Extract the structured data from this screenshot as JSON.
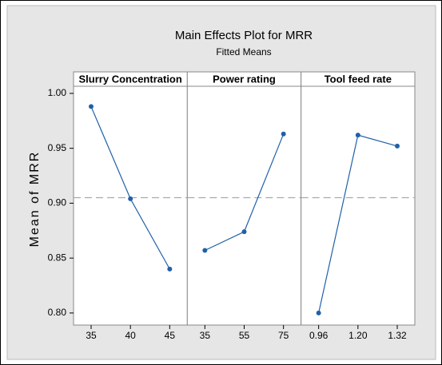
{
  "figure": {
    "title": "Main Effects Plot for MRR",
    "subtitle": "Fitted Means",
    "ylabel": "Mean of MRR"
  },
  "chart_data": [
    {
      "type": "line",
      "title": "Slurry Concentration",
      "categories": [
        "35",
        "40",
        "45"
      ],
      "values": [
        0.988,
        0.904,
        0.84
      ],
      "color": "#2060a8",
      "ylim": [
        0.789,
        1.0065
      ],
      "yticks": [
        {
          "value": 1,
          "label": "1.00"
        },
        0.95,
        {
          "value": 0.9,
          "label": "0.90"
        },
        0.85,
        {
          "value": 0.8,
          "label": "0.80"
        }
      ],
      "reference_line": 0.905
    },
    {
      "type": "line",
      "title": "Power rating",
      "categories": [
        "35",
        "55",
        "75"
      ],
      "values": [
        0.857,
        0.874,
        0.963
      ],
      "color": "#2060a8",
      "ylim": [
        0.789,
        1.0065
      ],
      "reference_line": 0.905
    },
    {
      "type": "line",
      "title": "Tool feed rate",
      "categories": [
        "0.96",
        "1.20",
        "1.32"
      ],
      "values": [
        0.8,
        0.962,
        0.952
      ],
      "color": "#2060a8",
      "ylim": [
        0.789,
        1.0065
      ],
      "reference_line": 0.905
    }
  ]
}
